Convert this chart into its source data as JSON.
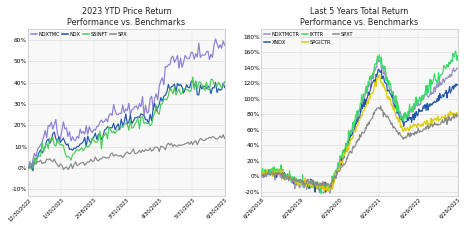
{
  "left_title": "2023 YTD Price Return\nPerformance vs. Benchmarks",
  "right_title": "Last 5 Years Total Return\nPerformance vs. Benchmarks",
  "left_legend": [
    "NDXTMC",
    "NDX",
    "S5INFT",
    "SPX"
  ],
  "left_colors": [
    "#8B7FD4",
    "#2255AA",
    "#44CC55",
    "#888888"
  ],
  "right_legend": [
    "NDXTMCTR",
    "XNDX",
    "IXTTR",
    "SPGICTR",
    "SPXT"
  ],
  "right_colors": [
    "#9B8EC4",
    "#2255AA",
    "#33DD66",
    "#DDCC00",
    "#888888"
  ],
  "left_xticks": [
    "12/30/2022",
    "1/30/2023",
    "2/28/2023",
    "3/31/2023",
    "4/30/2023",
    "5/31/2023",
    "6/30/2023"
  ],
  "right_xticks": [
    "6/29/2018",
    "6/29/2019",
    "6/29/2020",
    "6/29/2021",
    "6/29/2022",
    "6/29/2023"
  ],
  "left_ylim": [
    -0.13,
    0.65
  ],
  "right_ylim": [
    -0.25,
    1.9
  ],
  "left_yticks": [
    -0.1,
    0.0,
    0.1,
    0.2,
    0.3,
    0.4,
    0.5,
    0.6
  ],
  "right_yticks": [
    -0.2,
    0.0,
    0.2,
    0.4,
    0.6,
    0.8,
    1.0,
    1.2,
    1.4,
    1.6,
    1.8
  ],
  "background_color": "#FFFFFF",
  "panel_bg": "#F8F8F8",
  "grid_color": "#DDDDDD",
  "border_color": "#CCCCCC"
}
